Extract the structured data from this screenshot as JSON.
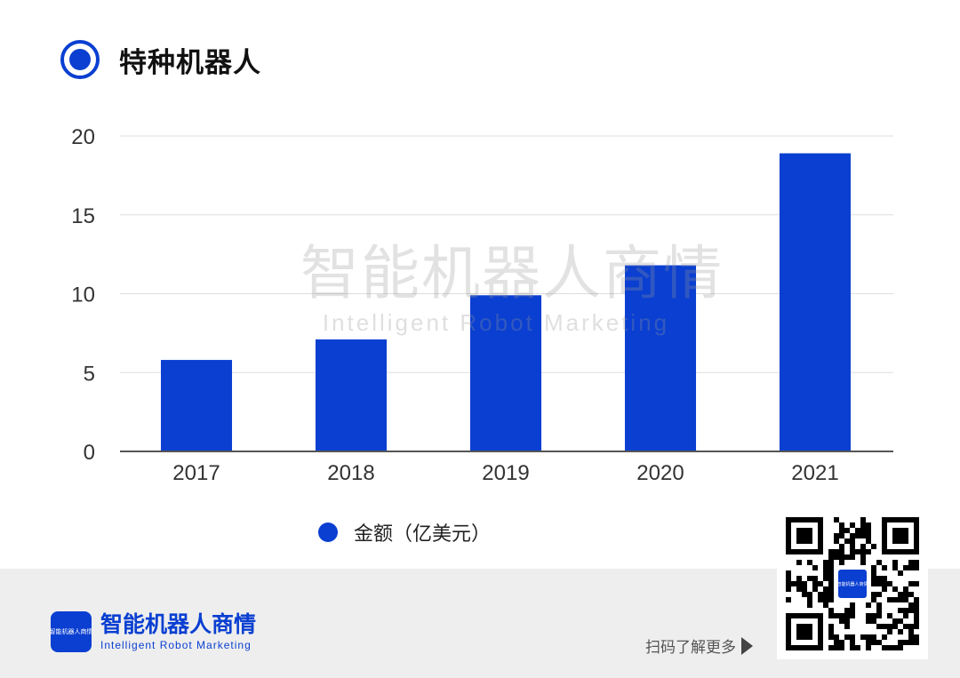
{
  "title": "特种机器人",
  "watermark": {
    "cn": "智能机器人商情",
    "en": "Intelligent Robot Marketing"
  },
  "chart_data": {
    "type": "bar",
    "categories": [
      "2017",
      "2018",
      "2019",
      "2020",
      "2021"
    ],
    "series": [
      {
        "name": "金额（亿美元）",
        "values": [
          5.8,
          7.1,
          9.9,
          11.8,
          18.9
        ]
      }
    ],
    "ylim": [
      0,
      20
    ],
    "yticks": [
      0,
      5,
      10,
      15,
      20
    ],
    "grid": true,
    "legend_position": "bottom",
    "colors": {
      "bar": "#0a3fd1",
      "grid": "#dddddd",
      "axis": "#555555"
    }
  },
  "legend": {
    "label": "金额（亿美元）"
  },
  "footer": {
    "brand_cn": "智能机器人商情",
    "brand_en": "Intelligent Robot Marketing",
    "logo_text": "智能机器人商情",
    "scan_text": "扫码了解更多",
    "arrow_icon": "play-arrow-icon",
    "qr_icon": "qr-code-icon"
  }
}
